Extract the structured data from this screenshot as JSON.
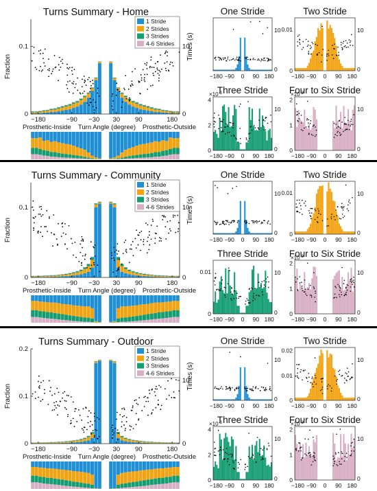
{
  "colors": {
    "one": "#1f8fd6",
    "two": "#f3a312",
    "three": "#139d71",
    "four": "#d8aec4",
    "points": "#000000",
    "axis": "#222222",
    "divider": "#000000"
  },
  "labels": {
    "fraction": "Fraction",
    "times": "Times (s)",
    "xlabel_left": "Prosthetic-Inside",
    "xlabel_mid": "Turn Angle (degree)",
    "xlabel_right": "Prosthetic-Outside",
    "exp": "×10",
    "exp_pow": "-3",
    "legend": [
      "1 Stride",
      "2 Strides",
      "3 Strides",
      "4-6 Strides"
    ],
    "small_titles": [
      "One Stride",
      "Two Stride",
      "Three Stride",
      "Four to Six Stride"
    ]
  },
  "chart_data": [
    {
      "type": "bar",
      "title": "Turns Summary - Home",
      "stacked": true,
      "x": [
        -195,
        -185,
        -175,
        -165,
        -155,
        -145,
        -135,
        -125,
        -115,
        -105,
        -95,
        -85,
        -75,
        -65,
        -55,
        -45,
        -35,
        -25,
        -15,
        15,
        25,
        35,
        45,
        55,
        65,
        75,
        85,
        95,
        105,
        115,
        125,
        135,
        145,
        155,
        165,
        175,
        185,
        195
      ],
      "series": [
        {
          "name": "1 Stride",
          "color_key": "one",
          "values": [
            0.001,
            0.001,
            0.001,
            0.002,
            0.002,
            0.003,
            0.003,
            0.004,
            0.005,
            0.006,
            0.007,
            0.009,
            0.011,
            0.014,
            0.018,
            0.024,
            0.034,
            0.05,
            0.075,
            0.075,
            0.05,
            0.034,
            0.024,
            0.018,
            0.014,
            0.011,
            0.009,
            0.007,
            0.006,
            0.005,
            0.004,
            0.003,
            0.003,
            0.002,
            0.002,
            0.001,
            0.001,
            0.001
          ]
        },
        {
          "name": "2 Strides",
          "color_key": "two",
          "values": [
            0.0015,
            0.0015,
            0.002,
            0.002,
            0.0025,
            0.003,
            0.0035,
            0.004,
            0.0045,
            0.005,
            0.0055,
            0.006,
            0.006,
            0.0065,
            0.007,
            0.006,
            0.004,
            0.003,
            0.002,
            0.002,
            0.003,
            0.004,
            0.006,
            0.007,
            0.0065,
            0.006,
            0.006,
            0.0055,
            0.005,
            0.0045,
            0.004,
            0.0035,
            0.003,
            0.0025,
            0.002,
            0.002,
            0.0015,
            0.0015
          ]
        },
        {
          "name": "3 Strides",
          "color_key": "three",
          "values": [
            0.001,
            0.001,
            0.001,
            0.0012,
            0.0012,
            0.0014,
            0.0015,
            0.0016,
            0.0017,
            0.0018,
            0.0019,
            0.002,
            0.002,
            0.002,
            0.0018,
            0.0014,
            0.001,
            0.0008,
            0.0005,
            0.0005,
            0.0008,
            0.001,
            0.0014,
            0.0018,
            0.002,
            0.002,
            0.002,
            0.0019,
            0.0018,
            0.0017,
            0.0016,
            0.0015,
            0.0014,
            0.0012,
            0.0012,
            0.001,
            0.001,
            0.001
          ]
        },
        {
          "name": "4-6 Strides",
          "color_key": "four",
          "values": [
            0.0008,
            0.0008,
            0.0008,
            0.0008,
            0.0008,
            0.0008,
            0.0008,
            0.0008,
            0.0008,
            0.0008,
            0.0008,
            0.0008,
            0.0007,
            0.0007,
            0.0006,
            0.0005,
            0.0004,
            0.0003,
            0.0002,
            0.0002,
            0.0003,
            0.0004,
            0.0005,
            0.0006,
            0.0007,
            0.0007,
            0.0008,
            0.0008,
            0.0008,
            0.0008,
            0.0008,
            0.0008,
            0.0008,
            0.0008,
            0.0008,
            0.0008,
            0.0008,
            0.0008
          ]
        }
      ],
      "xticks": [
        -180,
        -90,
        -30,
        30,
        90,
        180
      ],
      "yticks": [
        0,
        0.1
      ],
      "ylim": [
        0,
        0.14
      ],
      "right_yticks": [
        0,
        10
      ],
      "right_ylim": [
        0,
        14
      ],
      "legend_position": "top-right"
    },
    {
      "type": "bar",
      "title": "Turns Summary - Community",
      "stacked": true,
      "x": [
        -195,
        -185,
        -175,
        -165,
        -155,
        -145,
        -135,
        -125,
        -115,
        -105,
        -95,
        -85,
        -75,
        -65,
        -55,
        -45,
        -35,
        -25,
        -15,
        15,
        25,
        35,
        45,
        55,
        65,
        75,
        85,
        95,
        105,
        115,
        125,
        135,
        145,
        155,
        165,
        175,
        185,
        195
      ],
      "series": [
        {
          "name": "1 Stride",
          "color_key": "one",
          "values": [
            0.0005,
            0.0005,
            0.0006,
            0.0007,
            0.0008,
            0.0009,
            0.001,
            0.0012,
            0.0015,
            0.0018,
            0.0022,
            0.0028,
            0.0035,
            0.0045,
            0.006,
            0.008,
            0.014,
            0.1,
            0.105,
            0.105,
            0.1,
            0.014,
            0.008,
            0.006,
            0.0045,
            0.0035,
            0.0028,
            0.0022,
            0.0018,
            0.0015,
            0.0012,
            0.001,
            0.0009,
            0.0008,
            0.0007,
            0.0006,
            0.0005,
            0.0005
          ]
        },
        {
          "name": "2 Strides",
          "color_key": "two",
          "values": [
            0.0008,
            0.0008,
            0.0009,
            0.001,
            0.0011,
            0.0012,
            0.0014,
            0.0016,
            0.0018,
            0.0021,
            0.0025,
            0.003,
            0.0036,
            0.0045,
            0.006,
            0.008,
            0.011,
            0.004,
            0.002,
            0.002,
            0.004,
            0.011,
            0.008,
            0.006,
            0.0045,
            0.0036,
            0.003,
            0.0025,
            0.0021,
            0.0018,
            0.0016,
            0.0014,
            0.0012,
            0.0011,
            0.001,
            0.0009,
            0.0008,
            0.0008
          ]
        },
        {
          "name": "3 Strides",
          "color_key": "three",
          "values": [
            0.0006,
            0.0006,
            0.0006,
            0.0007,
            0.0007,
            0.0008,
            0.0008,
            0.0009,
            0.001,
            0.0011,
            0.0012,
            0.0014,
            0.0016,
            0.0019,
            0.0023,
            0.003,
            0.004,
            0.0015,
            0.0008,
            0.0008,
            0.0015,
            0.004,
            0.003,
            0.0023,
            0.0019,
            0.0016,
            0.0014,
            0.0012,
            0.0011,
            0.001,
            0.0009,
            0.0008,
            0.0008,
            0.0007,
            0.0007,
            0.0006,
            0.0006,
            0.0006
          ]
        },
        {
          "name": "4-6 Strides",
          "color_key": "four",
          "values": [
            0.0005,
            0.0005,
            0.0005,
            0.0005,
            0.0005,
            0.0005,
            0.0005,
            0.0005,
            0.0005,
            0.0005,
            0.0005,
            0.0005,
            0.0005,
            0.0005,
            0.0005,
            0.0006,
            0.0006,
            0.0003,
            0.0002,
            0.0002,
            0.0003,
            0.0006,
            0.0006,
            0.0005,
            0.0005,
            0.0005,
            0.0005,
            0.0005,
            0.0005,
            0.0005,
            0.0005,
            0.0005,
            0.0005,
            0.0005,
            0.0005,
            0.0005,
            0.0005,
            0.0005
          ]
        }
      ],
      "xticks": [
        -180,
        -90,
        -30,
        30,
        90,
        180
      ],
      "yticks": [
        0,
        0.1
      ],
      "ylim": [
        0,
        0.135
      ],
      "right_yticks": [
        0,
        10
      ],
      "right_ylim": [
        0,
        13.5
      ],
      "legend_position": "top-right"
    },
    {
      "type": "bar",
      "title": "Turns Summary - Outdoor",
      "stacked": true,
      "x": [
        -195,
        -185,
        -175,
        -165,
        -155,
        -145,
        -135,
        -125,
        -115,
        -105,
        -95,
        -85,
        -75,
        -65,
        -55,
        -45,
        -35,
        -25,
        -15,
        15,
        25,
        35,
        45,
        55,
        65,
        75,
        85,
        95,
        105,
        115,
        125,
        135,
        145,
        155,
        165,
        175,
        185,
        195
      ],
      "series": [
        {
          "name": "1 Stride",
          "color_key": "one",
          "values": [
            0.0005,
            0.0005,
            0.0006,
            0.0007,
            0.0008,
            0.0009,
            0.001,
            0.0012,
            0.0014,
            0.0017,
            0.002,
            0.0025,
            0.003,
            0.0038,
            0.005,
            0.007,
            0.012,
            0.17,
            0.175,
            0.175,
            0.17,
            0.012,
            0.007,
            0.005,
            0.0038,
            0.003,
            0.0025,
            0.002,
            0.0017,
            0.0014,
            0.0012,
            0.001,
            0.0009,
            0.0008,
            0.0007,
            0.0006,
            0.0005,
            0.0005
          ]
        },
        {
          "name": "2 Strides",
          "color_key": "two",
          "values": [
            0.0008,
            0.0008,
            0.0009,
            0.001,
            0.0011,
            0.0012,
            0.0013,
            0.0015,
            0.0017,
            0.002,
            0.0023,
            0.0027,
            0.0032,
            0.004,
            0.005,
            0.0065,
            0.009,
            0.003,
            0.0015,
            0.0015,
            0.003,
            0.009,
            0.0065,
            0.005,
            0.004,
            0.0032,
            0.0027,
            0.0023,
            0.002,
            0.0017,
            0.0015,
            0.0013,
            0.0012,
            0.0011,
            0.001,
            0.0009,
            0.0008,
            0.0008
          ]
        },
        {
          "name": "3 Strides",
          "color_key": "three",
          "values": [
            0.0006,
            0.0006,
            0.0006,
            0.0007,
            0.0007,
            0.0008,
            0.0008,
            0.0009,
            0.001,
            0.0011,
            0.0012,
            0.0013,
            0.0015,
            0.0017,
            0.002,
            0.0025,
            0.0032,
            0.001,
            0.0006,
            0.0006,
            0.001,
            0.0032,
            0.0025,
            0.002,
            0.0017,
            0.0015,
            0.0013,
            0.0012,
            0.0011,
            0.001,
            0.0009,
            0.0008,
            0.0008,
            0.0007,
            0.0007,
            0.0006,
            0.0006,
            0.0006
          ]
        },
        {
          "name": "4-6 Strides",
          "color_key": "four",
          "values": [
            0.0006,
            0.0006,
            0.0006,
            0.0006,
            0.0006,
            0.0006,
            0.0006,
            0.0006,
            0.0006,
            0.0006,
            0.0006,
            0.0006,
            0.0006,
            0.0006,
            0.0006,
            0.0006,
            0.0006,
            0.0003,
            0.0002,
            0.0002,
            0.0003,
            0.0006,
            0.0006,
            0.0006,
            0.0006,
            0.0006,
            0.0006,
            0.0006,
            0.0006,
            0.0006,
            0.0006,
            0.0006,
            0.0006,
            0.0006,
            0.0006,
            0.0006,
            0.0006,
            0.0006
          ]
        }
      ],
      "xticks": [
        -180,
        -90,
        -30,
        30,
        90,
        180
      ],
      "yticks": [
        0,
        0.1,
        0.2
      ],
      "ylim": [
        0,
        0.2
      ],
      "right_yticks": [
        0,
        10
      ],
      "right_ylim": [
        0,
        15
      ],
      "legend_position": "top-right"
    }
  ],
  "small_panels": {
    "home": {
      "one": {
        "yticks": [],
        "right_ytick": "10",
        "exp": false
      },
      "two": {
        "yticks": [
          "0.01",
          "0"
        ],
        "right_ytick": "10",
        "exp": false
      },
      "three": {
        "yticks": [
          "4",
          "2",
          "0"
        ],
        "right_ytick": "10",
        "exp": true
      },
      "four": {
        "yticks": [
          "2",
          "1",
          "0"
        ],
        "right_ytick": "10",
        "exp": true
      }
    },
    "community": {
      "one": {
        "yticks": [],
        "right_ytick": "10",
        "exp": false
      },
      "two": {
        "yticks": [
          "0.01",
          "0"
        ],
        "right_ytick": "10",
        "exp": false
      },
      "three": {
        "yticks": [
          "0.01",
          "0"
        ],
        "right_ytick": "10",
        "exp": false
      },
      "four": {
        "yticks": [
          "2",
          "1",
          "0"
        ],
        "right_ytick": "10",
        "exp": true
      }
    },
    "outdoor": {
      "one": {
        "yticks": [],
        "right_ytick": "10",
        "exp": false
      },
      "two": {
        "yticks": [
          "0.02",
          "0.01",
          "0"
        ],
        "right_ytick": "10",
        "exp": false
      },
      "three": {
        "yticks": [
          "4",
          "2",
          "0"
        ],
        "right_ytick": "10",
        "exp": true
      },
      "four": {
        "yticks": [
          "2",
          "1",
          "0"
        ],
        "right_ytick": "10",
        "exp": true
      }
    },
    "small_xticks_one": [
      "-180",
      "-90",
      "0",
      "90",
      "180"
    ],
    "small_xticks": [
      "-180",
      "-90",
      "0",
      "90",
      "180"
    ]
  }
}
